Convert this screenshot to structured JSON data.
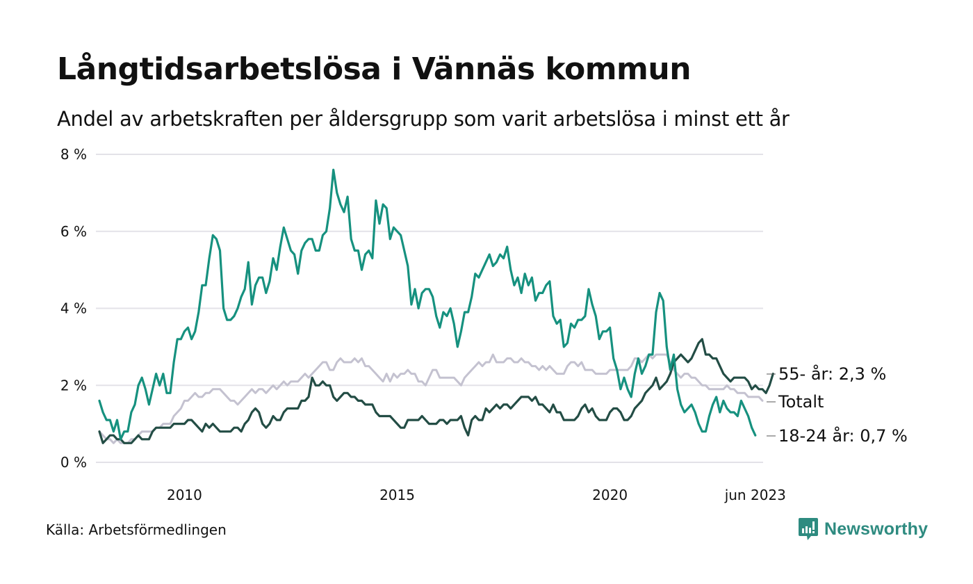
{
  "header": {
    "title": "Långtidsarbetslösa i Vännäs kommun",
    "subtitle": "Andel av arbetskraften per åldersgrupp som varit arbetslösa i minst ett år"
  },
  "footer": {
    "source": "Källa: Arbetsförmedlingen",
    "brand": "Newsworthy",
    "brand_icon": "bar-chart-speech-bubble-icon"
  },
  "colors": {
    "youth": "#16917f",
    "senior": "#234d45",
    "total": "#c4c2d0",
    "grid": "#e3e2e8",
    "brand": "#2e8b80"
  },
  "chart_data": {
    "type": "line",
    "title": "Långtidsarbetslösa i Vännäs kommun",
    "subtitle": "Andel av arbetskraften per åldersgrupp som varit arbetslösa i minst ett år",
    "xlabel": "",
    "ylabel": "",
    "x_start": "2008-01",
    "x_end": "2023-06",
    "x_frequency": "monthly",
    "x_ticks": [
      {
        "label": "2010",
        "month_index": 24
      },
      {
        "label": "2015",
        "month_index": 84
      },
      {
        "label": "2020",
        "month_index": 144
      },
      {
        "label": "jun 2023",
        "month_index": 185
      }
    ],
    "y_ticks": [
      {
        "label": "0 %",
        "value": 0
      },
      {
        "label": "2 %",
        "value": 2
      },
      {
        "label": "4 %",
        "value": 4
      },
      {
        "label": "6 %",
        "value": 6
      },
      {
        "label": "8 %",
        "value": 8
      }
    ],
    "ylim": [
      0,
      8
    ],
    "grid": true,
    "legend": "end-labels-right",
    "series": [
      {
        "name": "Totalt",
        "key": "total",
        "end_label": "Totalt",
        "values": [
          0.8,
          0.7,
          0.6,
          0.6,
          0.5,
          0.6,
          0.5,
          0.5,
          0.5,
          0.6,
          0.6,
          0.7,
          0.8,
          0.8,
          0.8,
          0.8,
          0.9,
          0.9,
          1.0,
          1.0,
          1.0,
          1.2,
          1.3,
          1.4,
          1.6,
          1.6,
          1.7,
          1.8,
          1.7,
          1.7,
          1.8,
          1.8,
          1.9,
          1.9,
          1.9,
          1.8,
          1.7,
          1.6,
          1.6,
          1.5,
          1.6,
          1.7,
          1.8,
          1.9,
          1.8,
          1.9,
          1.9,
          1.8,
          1.9,
          2.0,
          1.9,
          2.0,
          2.1,
          2.0,
          2.1,
          2.1,
          2.1,
          2.2,
          2.3,
          2.2,
          2.3,
          2.4,
          2.5,
          2.6,
          2.6,
          2.4,
          2.4,
          2.6,
          2.7,
          2.6,
          2.6,
          2.6,
          2.7,
          2.6,
          2.7,
          2.5,
          2.5,
          2.4,
          2.3,
          2.2,
          2.1,
          2.3,
          2.1,
          2.3,
          2.2,
          2.3,
          2.3,
          2.4,
          2.3,
          2.3,
          2.1,
          2.1,
          2.0,
          2.2,
          2.4,
          2.4,
          2.2,
          2.2,
          2.2,
          2.2,
          2.2,
          2.1,
          2.0,
          2.2,
          2.3,
          2.4,
          2.5,
          2.6,
          2.5,
          2.6,
          2.6,
          2.8,
          2.6,
          2.6,
          2.6,
          2.7,
          2.7,
          2.6,
          2.6,
          2.7,
          2.6,
          2.6,
          2.5,
          2.5,
          2.4,
          2.5,
          2.4,
          2.5,
          2.4,
          2.3,
          2.3,
          2.3,
          2.5,
          2.6,
          2.6,
          2.5,
          2.6,
          2.4,
          2.4,
          2.4,
          2.3,
          2.3,
          2.3,
          2.3,
          2.4,
          2.4,
          2.4,
          2.4,
          2.4,
          2.4,
          2.5,
          2.7,
          2.7,
          2.6,
          2.7,
          2.8,
          2.7,
          2.8,
          2.8,
          2.8,
          2.8,
          2.6,
          2.4,
          2.3,
          2.2,
          2.3,
          2.3,
          2.2,
          2.2,
          2.1,
          2.0,
          2.0,
          1.9,
          1.9,
          1.9,
          1.9,
          1.9,
          2.0,
          1.9,
          1.9,
          1.8,
          1.8,
          1.8,
          1.7,
          1.7,
          1.7,
          1.7,
          1.6
        ]
      },
      {
        "name": "55- år",
        "key": "senior",
        "end_label": "55- år: 2,3 %",
        "values": [
          0.8,
          0.5,
          0.6,
          0.7,
          0.7,
          0.6,
          0.6,
          0.5,
          0.5,
          0.5,
          0.6,
          0.7,
          0.6,
          0.6,
          0.6,
          0.8,
          0.9,
          0.9,
          0.9,
          0.9,
          0.9,
          1.0,
          1.0,
          1.0,
          1.0,
          1.1,
          1.1,
          1.0,
          0.9,
          0.8,
          1.0,
          0.9,
          1.0,
          0.9,
          0.8,
          0.8,
          0.8,
          0.8,
          0.9,
          0.9,
          0.8,
          1.0,
          1.1,
          1.3,
          1.4,
          1.3,
          1.0,
          0.9,
          1.0,
          1.2,
          1.1,
          1.1,
          1.3,
          1.4,
          1.4,
          1.4,
          1.4,
          1.6,
          1.6,
          1.7,
          2.2,
          2.0,
          2.0,
          2.1,
          2.0,
          2.0,
          1.7,
          1.6,
          1.7,
          1.8,
          1.8,
          1.7,
          1.7,
          1.6,
          1.6,
          1.5,
          1.5,
          1.5,
          1.3,
          1.2,
          1.2,
          1.2,
          1.2,
          1.1,
          1.0,
          0.9,
          0.9,
          1.1,
          1.1,
          1.1,
          1.1,
          1.2,
          1.1,
          1.0,
          1.0,
          1.0,
          1.1,
          1.1,
          1.0,
          1.1,
          1.1,
          1.1,
          1.2,
          0.9,
          0.7,
          1.1,
          1.2,
          1.1,
          1.1,
          1.4,
          1.3,
          1.4,
          1.5,
          1.4,
          1.5,
          1.5,
          1.4,
          1.5,
          1.6,
          1.7,
          1.7,
          1.7,
          1.6,
          1.7,
          1.5,
          1.5,
          1.4,
          1.3,
          1.5,
          1.3,
          1.3,
          1.1,
          1.1,
          1.1,
          1.1,
          1.2,
          1.4,
          1.5,
          1.3,
          1.4,
          1.2,
          1.1,
          1.1,
          1.1,
          1.3,
          1.4,
          1.4,
          1.3,
          1.1,
          1.1,
          1.2,
          1.4,
          1.5,
          1.6,
          1.8,
          1.9,
          2.0,
          2.2,
          1.9,
          2.0,
          2.1,
          2.3,
          2.6,
          2.7,
          2.8,
          2.7,
          2.6,
          2.7,
          2.9,
          3.1,
          3.2,
          2.8,
          2.8,
          2.7,
          2.7,
          2.5,
          2.3,
          2.2,
          2.1,
          2.2,
          2.2,
          2.2,
          2.2,
          2.1,
          1.9,
          2.0,
          1.9,
          1.9,
          1.8,
          2.0,
          2.3
        ]
      },
      {
        "name": "18-24 år",
        "key": "youth",
        "end_label": "18-24 år: 0,7 %",
        "values": [
          1.6,
          1.3,
          1.1,
          1.1,
          0.8,
          1.1,
          0.6,
          0.8,
          0.8,
          1.3,
          1.5,
          2.0,
          2.2,
          1.9,
          1.5,
          1.9,
          2.3,
          2.0,
          2.3,
          1.8,
          1.8,
          2.6,
          3.2,
          3.2,
          3.4,
          3.5,
          3.2,
          3.4,
          3.9,
          4.6,
          4.6,
          5.3,
          5.9,
          5.8,
          5.5,
          4.0,
          3.7,
          3.7,
          3.8,
          4.0,
          4.3,
          4.5,
          5.2,
          4.1,
          4.6,
          4.8,
          4.8,
          4.4,
          4.7,
          5.3,
          5.0,
          5.6,
          6.1,
          5.8,
          5.5,
          5.4,
          4.9,
          5.5,
          5.7,
          5.8,
          5.8,
          5.5,
          5.5,
          5.9,
          6.0,
          6.6,
          7.6,
          7.0,
          6.7,
          6.5,
          6.9,
          5.8,
          5.5,
          5.5,
          5.0,
          5.4,
          5.5,
          5.3,
          6.8,
          6.2,
          6.7,
          6.6,
          5.8,
          6.1,
          6.0,
          5.9,
          5.5,
          5.1,
          4.1,
          4.5,
          4.0,
          4.4,
          4.5,
          4.5,
          4.3,
          3.8,
          3.5,
          3.9,
          3.8,
          4.0,
          3.6,
          3.0,
          3.4,
          3.9,
          3.9,
          4.3,
          4.9,
          4.8,
          5.0,
          5.2,
          5.4,
          5.1,
          5.2,
          5.4,
          5.3,
          5.6,
          5.0,
          4.6,
          4.8,
          4.4,
          4.9,
          4.6,
          4.8,
          4.2,
          4.4,
          4.4,
          4.6,
          4.7,
          3.8,
          3.6,
          3.7,
          3.0,
          3.1,
          3.6,
          3.5,
          3.7,
          3.7,
          3.8,
          4.5,
          4.1,
          3.8,
          3.2,
          3.4,
          3.4,
          3.5,
          2.7,
          2.4,
          1.9,
          2.2,
          1.9,
          1.7,
          2.3,
          2.7,
          2.3,
          2.5,
          2.8,
          2.8,
          3.9,
          4.4,
          4.2,
          3.0,
          2.4,
          2.8,
          1.9,
          1.5,
          1.3,
          1.4,
          1.5,
          1.3,
          1.0,
          0.8,
          0.8,
          1.2,
          1.5,
          1.7,
          1.3,
          1.6,
          1.4,
          1.3,
          1.3,
          1.2,
          1.6,
          1.4,
          1.2,
          0.9,
          0.7
        ]
      }
    ]
  }
}
